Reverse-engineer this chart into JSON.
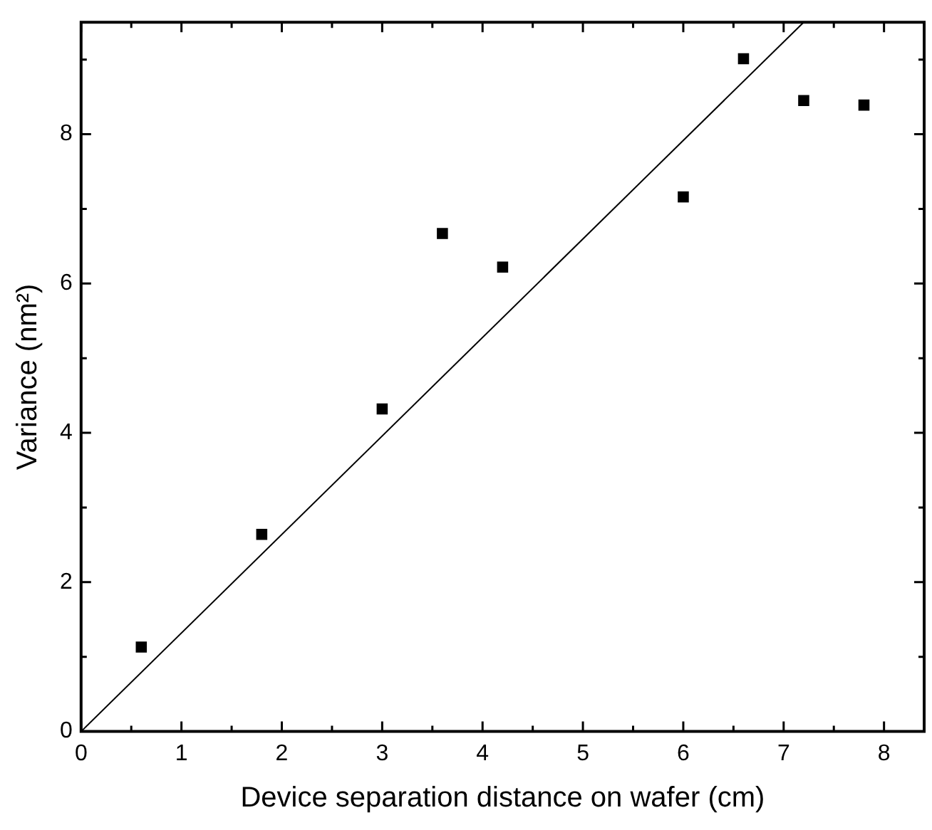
{
  "chart_data": {
    "type": "scatter",
    "xlabel": "Device separation distance on wafer (cm)",
    "ylabel": "Variance (nm²)",
    "x": [
      0.6,
      1.8,
      3.0,
      3.6,
      4.2,
      6.0,
      6.6,
      7.2,
      7.8
    ],
    "series": [
      {
        "color": "#000000",
        "marker": "square",
        "values": [
          1.13,
          2.64,
          4.32,
          6.67,
          6.22,
          7.16,
          9.01,
          8.45,
          8.39
        ]
      },
      {
        "type": "line",
        "color": "#000000",
        "x": [
          0,
          7.2
        ],
        "values": [
          0,
          9.5
        ],
        "marker": "none",
        "line_style": "solid"
      }
    ],
    "xlim": [
      0,
      8.4
    ],
    "ylim": [
      0,
      9.5
    ],
    "xticks": [
      0,
      {
        "value": 0.5,
        "label": null
      },
      1,
      {
        "value": 1.5,
        "label": null
      },
      2,
      {
        "value": 2.5,
        "label": null
      },
      3,
      {
        "value": 3.5,
        "label": null
      },
      4,
      {
        "value": 4.5,
        "label": null
      },
      5,
      {
        "value": 5.5,
        "label": null
      },
      6,
      {
        "value": 6.5,
        "label": null
      },
      7,
      {
        "value": 7.5,
        "label": null
      },
      8
    ],
    "yticks": [
      0,
      {
        "value": 1,
        "label": null
      },
      2,
      {
        "value": 3,
        "label": null
      },
      4,
      {
        "value": 5,
        "label": null
      },
      6,
      {
        "value": 7,
        "label": null
      },
      8,
      {
        "value": 9,
        "label": null
      }
    ],
    "grid": false,
    "legend": false
  }
}
